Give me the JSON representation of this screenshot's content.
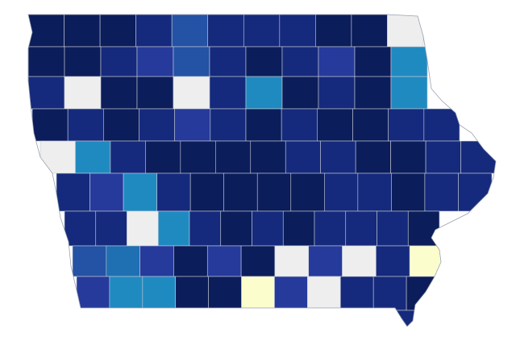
{
  "map": {
    "rows": [
      [
        "#0b1d5a",
        "#0b1d5a",
        "#0b1d5a",
        "#152a7c",
        "#2452a4",
        "#152a7c",
        "#152a7c",
        "#152a7c",
        "#0b1d5a",
        "#0b1d5a",
        "#eeeeee"
      ],
      [
        "#0b1d5a",
        "#0b1d5a",
        "#152a7c",
        "#253a9b",
        "#2452a4",
        "#152a7c",
        "#0b1d5a",
        "#152a7c",
        "#253a9b",
        "#0b1d5a",
        "#1f8ac0"
      ],
      [
        "#152a7c",
        "#eeeeee",
        "#0b1d5a",
        "#0b1d5a",
        "#eeeeee",
        "#152a7c",
        "#1f8ac0",
        "#0b1d5a",
        "#152a7c",
        "#0b1d5a",
        "#1f8ac0"
      ],
      [
        "#0b1d5a",
        "#152a7c",
        "#0b1d5a",
        "#152a7c",
        "#253a9b",
        "#152a7c",
        "#0b1d5a",
        "#152a7c",
        "#0b1d5a",
        "#0b1d5a",
        "#152a7c",
        "#152a7c"
      ],
      [
        "#eeeeee",
        "#1f8ac0",
        "#152a7c",
        "#0b1d5a",
        "#0b1d5a",
        "#0b1d5a",
        "#0b1d5a",
        "#152a7c",
        "#152a7c",
        "#0b1d5a",
        "#0b1d5a",
        "#152a7c",
        "#152a7c"
      ],
      [
        "#152a7c",
        "#253a9b",
        "#1f8ac0",
        "#152a7c",
        "#0b1d5a",
        "#0b1d5a",
        "#0b1d5a",
        "#0b1d5a",
        "#152a7c",
        "#152a7c",
        "#0b1d5a",
        "#152a7c",
        "#152a7c"
      ],
      [
        "#152a7c",
        "#152a7c",
        "#eeeeee",
        "#1f8ac0",
        "#152a7c",
        "#0b1d5a",
        "#152a7c",
        "#0b1d5a",
        "#152a7c",
        "#152a7c",
        "#152a7c",
        "#0b1d5a"
      ],
      [
        "#2452a4",
        "#1f6fb3",
        "#253a9b",
        "#0b1d5a",
        "#253a9b",
        "#0b1d5a",
        "#eeeeee",
        "#253a9b",
        "#eeeeee",
        "#152a7c",
        "#fbfdcc"
      ],
      [
        "#253a9b",
        "#1f8ac0",
        "#1f8ac0",
        "#0b1d5a",
        "#0b1d5a",
        "#fbfdcc",
        "#253a9b",
        "#eeeeee",
        "#152a7c",
        "#152a7c",
        "#0b1d5a"
      ],
      [
        "#152a7c"
      ]
    ]
  }
}
